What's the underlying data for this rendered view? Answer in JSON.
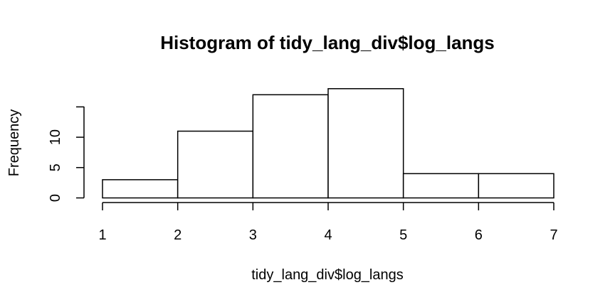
{
  "chart_data": {
    "type": "bar",
    "title": "Histogram of tidy_lang_div$log_langs",
    "xlabel": "tidy_lang_div$log_langs",
    "ylabel": "Frequency",
    "bins": [
      {
        "x0": 1,
        "x1": 2,
        "count": 3
      },
      {
        "x0": 2,
        "x1": 3,
        "count": 11
      },
      {
        "x0": 3,
        "x1": 4,
        "count": 17
      },
      {
        "x0": 4,
        "x1": 5,
        "count": 18
      },
      {
        "x0": 5,
        "x1": 6,
        "count": 4
      },
      {
        "x0": 6,
        "x1": 7,
        "count": 4
      }
    ],
    "x_ticks": [
      "1",
      "2",
      "3",
      "4",
      "5",
      "6",
      "7"
    ],
    "y_ticks": [
      "0",
      "5",
      "10",
      ""
    ],
    "xlim": [
      1,
      7
    ],
    "ylim": [
      0,
      18
    ],
    "grid": false,
    "legend": "none"
  }
}
